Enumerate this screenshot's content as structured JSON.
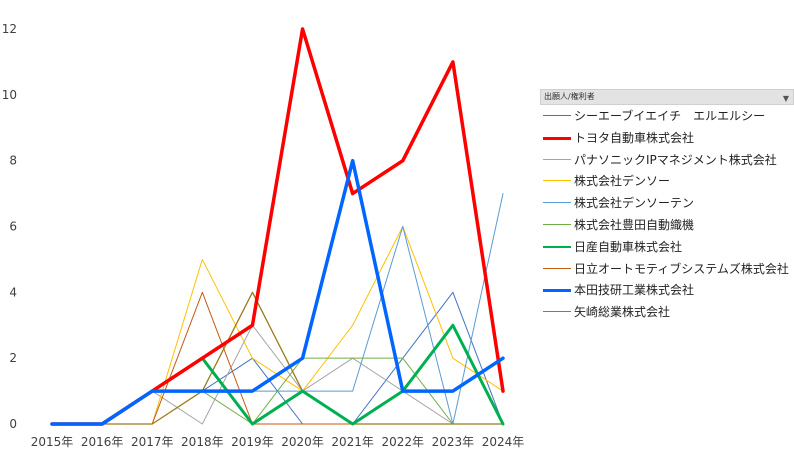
{
  "legend_header": "出願人/権利者",
  "legend_filter_icon": "filter-icon",
  "chart_data": {
    "type": "line",
    "x": [
      "2015年",
      "2016年",
      "2017年",
      "2018年",
      "2019年",
      "2020年",
      "2021年",
      "2022年",
      "2023年",
      "2024年"
    ],
    "ylim": [
      0,
      12
    ],
    "yticks": [
      0,
      2,
      4,
      6,
      8,
      10,
      12
    ],
    "grid": false,
    "legend_position": "right",
    "series": [
      {
        "name": "シーエーブイエイチ　エルエルシー",
        "color": "#4472c4",
        "width": 1,
        "values": [
          0,
          0,
          1,
          1,
          2,
          0,
          0,
          2,
          4,
          0
        ]
      },
      {
        "name": "トヨタ自動車株式会社",
        "color": "#ff0000",
        "width": 3.5,
        "values": [
          0,
          0,
          1,
          2,
          3,
          12,
          7,
          8,
          11,
          1
        ]
      },
      {
        "name": "パナソニックIPマネジメント株式会社",
        "color": "#a5a5a5",
        "width": 1,
        "values": [
          0,
          0,
          1,
          0,
          3,
          1,
          2,
          1,
          0,
          0
        ]
      },
      {
        "name": "株式会社デンソー",
        "color": "#ffc000",
        "width": 1,
        "values": [
          0,
          0,
          0,
          5,
          2,
          1,
          3,
          6,
          2,
          1
        ]
      },
      {
        "name": "株式会社デンソーテン",
        "color": "#5b9bd5",
        "width": 1,
        "values": [
          0,
          0,
          1,
          1,
          1,
          1,
          1,
          6,
          0,
          7
        ]
      },
      {
        "name": "株式会社豊田自動織機",
        "color": "#70ad47",
        "width": 1,
        "values": [
          0,
          0,
          1,
          1,
          0,
          2,
          2,
          2,
          0,
          0
        ]
      },
      {
        "name": "日産自動車株式会社",
        "color": "#00b050",
        "width": 3,
        "values": [
          0,
          0,
          1,
          2,
          0,
          1,
          0,
          1,
          3,
          0
        ]
      },
      {
        "name": "日立オートモティブシステムズ株式会社",
        "color": "#c55a11",
        "width": 1,
        "values": [
          0,
          0,
          0,
          4,
          0,
          0,
          0,
          0,
          0,
          0
        ]
      },
      {
        "name": "本田技研工業株式会社",
        "color": "#0066ff",
        "width": 3.5,
        "values": [
          0,
          0,
          1,
          1,
          1,
          2,
          8,
          1,
          1,
          2
        ]
      },
      {
        "name": "矢崎総業株式会社",
        "color": "#9c7a1a",
        "width": 1.3,
        "values": [
          0,
          0,
          0,
          1,
          4,
          1,
          0,
          0,
          0,
          0
        ]
      }
    ]
  }
}
